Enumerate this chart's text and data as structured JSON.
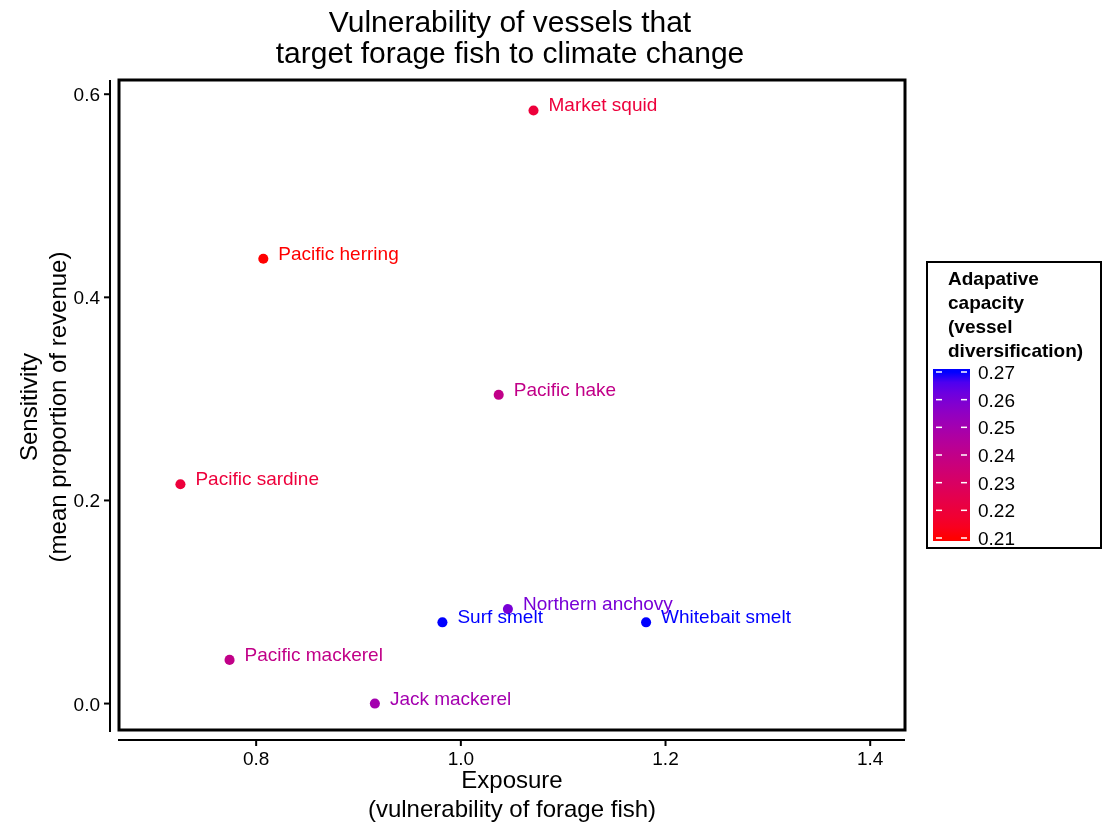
{
  "chart_data": {
    "type": "scatter",
    "title": "Vulnerability of vessels that\ntarget forage fish to climate change",
    "xlabel": "Exposure\n(vulnerability of forage fish)",
    "ylabel": "Sensitivity\n(mean proportion of revenue)",
    "clabel": "Adapative\ncapacity\n(vessel\ndiversification)",
    "x": [
      1.071,
      0.807,
      1.037,
      0.726,
      1.046,
      0.982,
      1.181,
      0.774,
      0.916
    ],
    "values": [
      0.584,
      0.438,
      0.304,
      0.216,
      0.093,
      0.08,
      0.08,
      0.043,
      0.0
    ],
    "cvalues": [
      0.22,
      0.21,
      0.24,
      0.22,
      0.26,
      0.27,
      0.27,
      0.24,
      0.25
    ],
    "clim": [
      0.21,
      0.27
    ],
    "cticks": [
      0.21,
      0.22,
      0.23,
      0.24,
      0.25,
      0.26,
      0.27
    ],
    "xlim": [
      0.665,
      1.434
    ],
    "ylim": [
      -0.028,
      0.614
    ],
    "xticks": [
      {
        "value": 0.8,
        "label": "0.8"
      },
      {
        "value": 1.0,
        "label": "1.0"
      },
      {
        "value": 1.2,
        "label": "1.2"
      },
      {
        "value": 1.4,
        "label": "1.4"
      }
    ],
    "yticks": [
      {
        "value": 0.0,
        "label": "0.0"
      },
      {
        "value": 0.2,
        "label": "0.2"
      },
      {
        "value": 0.4,
        "label": "0.4"
      },
      {
        "value": 0.6,
        "label": "0.6"
      }
    ],
    "marker": "circle",
    "grid": false,
    "annotations": [
      {
        "text": "Market squid",
        "x": 1.071,
        "y": 0.584
      },
      {
        "text": "Pacific herring",
        "x": 0.807,
        "y": 0.438
      },
      {
        "text": "Pacific hake",
        "x": 1.037,
        "y": 0.304
      },
      {
        "text": "Pacific sardine",
        "x": 0.726,
        "y": 0.216
      },
      {
        "text": "Northern anchovy",
        "x": 1.046,
        "y": 0.093
      },
      {
        "text": "Surf smelt",
        "x": 0.982,
        "y": 0.08
      },
      {
        "text": "Whitebait smelt",
        "x": 1.181,
        "y": 0.08
      },
      {
        "text": "Pacific mackerel",
        "x": 0.774,
        "y": 0.043
      },
      {
        "text": "Jack mackerel",
        "x": 0.916,
        "y": 0.0
      }
    ]
  }
}
